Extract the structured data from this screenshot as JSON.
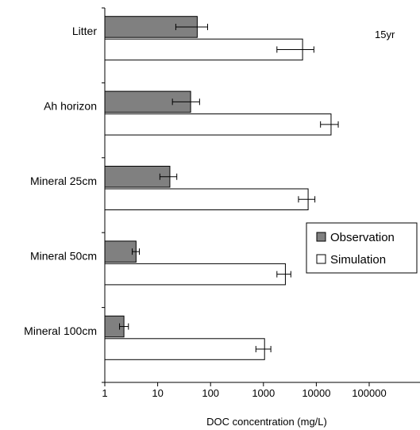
{
  "chart_data": {
    "type": "bar",
    "orientation": "horizontal",
    "xlabel": "DOC concentration (mg/L)",
    "x_scale": "log",
    "xlim": [
      1,
      500000
    ],
    "x_ticks": [
      "1",
      "10",
      "100",
      "1000",
      "10000",
      "100000"
    ],
    "x_tick_values": [
      1,
      10,
      100,
      1000,
      10000,
      100000
    ],
    "categories": [
      "Litter",
      "Ah horizon",
      "Mineral 25cm",
      "Mineral 50cm",
      "Mineral 100cm"
    ],
    "series": [
      {
        "name": "Observation",
        "color": "#808080",
        "values": [
          56,
          42,
          17,
          3.9,
          2.3
        ],
        "err_low": [
          22,
          19,
          11,
          3.3,
          1.9
        ],
        "err_high": [
          88,
          62,
          23,
          4.5,
          2.8
        ]
      },
      {
        "name": "Simulation",
        "color": "#ffffff",
        "values": [
          5500,
          19000,
          7000,
          2600,
          1050
        ],
        "err_low": [
          1800,
          12000,
          4600,
          1800,
          720
        ],
        "err_high": [
          9000,
          26000,
          9400,
          3300,
          1380
        ]
      }
    ],
    "annotation": "15yr",
    "legend_position": "right-middle"
  }
}
